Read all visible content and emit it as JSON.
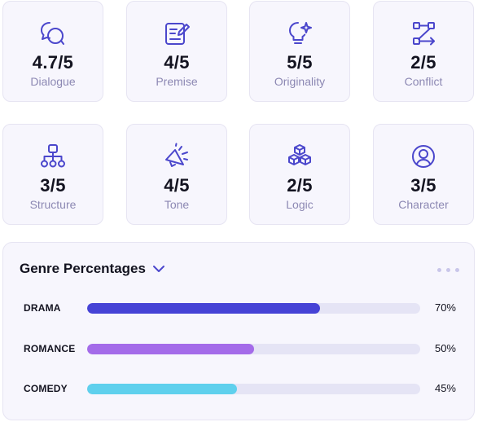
{
  "cards": [
    {
      "score": "4.7/5",
      "label": "Dialogue",
      "icon": "chat-bubbles-icon"
    },
    {
      "score": "4/5",
      "label": "Premise",
      "icon": "edit-note-icon"
    },
    {
      "score": "5/5",
      "label": "Originality",
      "icon": "lightbulb-sparkle-icon"
    },
    {
      "score": "2/5",
      "label": "Conflict",
      "icon": "route-icon"
    },
    {
      "score": "3/5",
      "label": "Structure",
      "icon": "hierarchy-icon"
    },
    {
      "score": "4/5",
      "label": "Tone",
      "icon": "megaphone-icon"
    },
    {
      "score": "2/5",
      "label": "Logic",
      "icon": "blocks-icon"
    },
    {
      "score": "3/5",
      "label": "Character",
      "icon": "user-circle-icon"
    }
  ],
  "genre": {
    "title": "Genre Percentages",
    "items": [
      {
        "name": "DRAMA",
        "percent": 70,
        "percent_label": "70%",
        "color": "#4643d6"
      },
      {
        "name": "ROMANCE",
        "percent": 50,
        "percent_label": "50%",
        "color": "#a46be9"
      },
      {
        "name": "COMEDY",
        "percent": 45,
        "percent_label": "45%",
        "color": "#5fd0ed"
      }
    ]
  },
  "colors": {
    "icon": "#4b47cc",
    "card_bg": "#f7f6fd",
    "label": "#8c88b3"
  }
}
